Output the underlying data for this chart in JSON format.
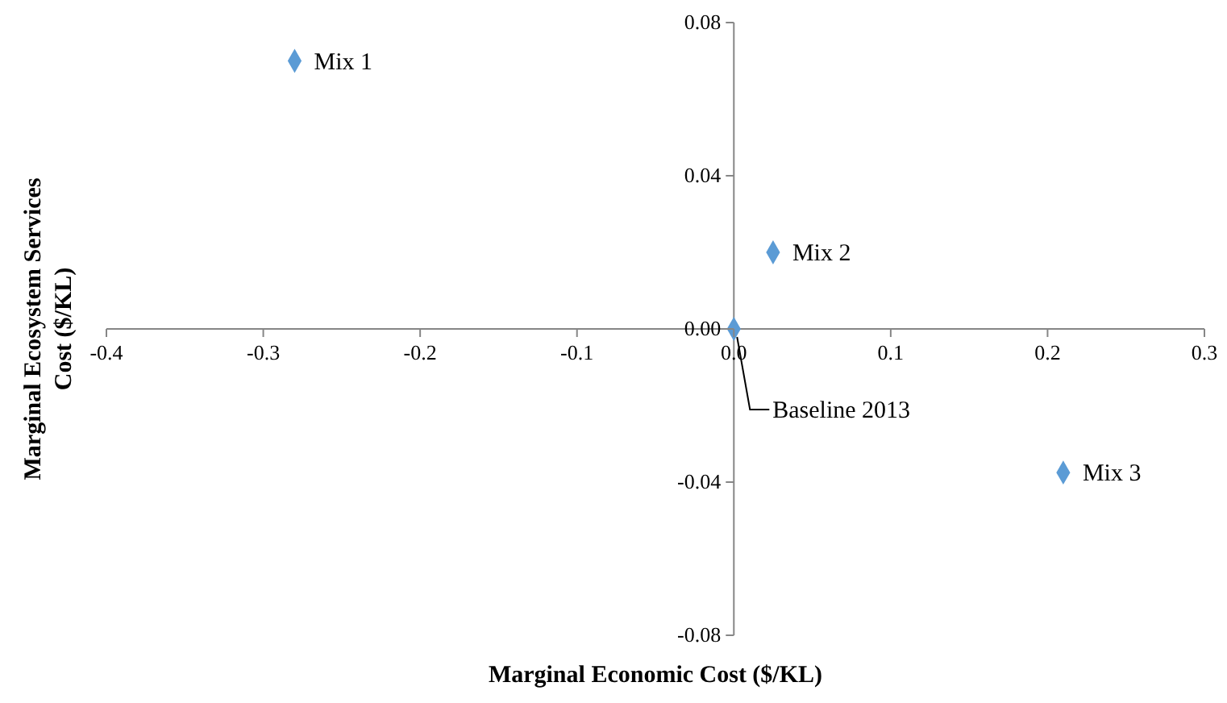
{
  "chart_data": {
    "type": "scatter",
    "xlabel": "Marginal Economic Cost ($/KL)",
    "ylabel": "Marginal Ecosystem Services Cost ($/KL)",
    "x": [
      -0.28,
      0.025,
      0,
      0.21
    ],
    "series": [
      {
        "color": "#5b9bd5",
        "values": [
          0.07,
          0.02,
          0,
          -0.0375
        ]
      }
    ],
    "xlim": [
      -0.4,
      0.3
    ],
    "xticks": [
      -0.4,
      -0.3,
      -0.2,
      -0.1,
      {
        "value": 0,
        "label": "0.0"
      },
      0.1,
      0.2,
      0.3
    ],
    "ylim": [
      -0.08,
      0.08
    ],
    "yticks": [
      -0.08,
      -0.04,
      {
        "value": 0,
        "label": "0.00"
      },
      0.04,
      0.08
    ],
    "marker": "diamond",
    "grid": false,
    "legend": false,
    "annotations": [
      {
        "text": "Mix 1",
        "x": -0.28,
        "y": 0.07
      },
      {
        "text": "Mix 2",
        "x": 0.025,
        "y": 0.02
      },
      {
        "text": "Baseline 2013",
        "x": 0,
        "y": 0
      },
      {
        "text": "Mix 3",
        "x": 0.21,
        "y": -0.0375
      }
    ]
  }
}
